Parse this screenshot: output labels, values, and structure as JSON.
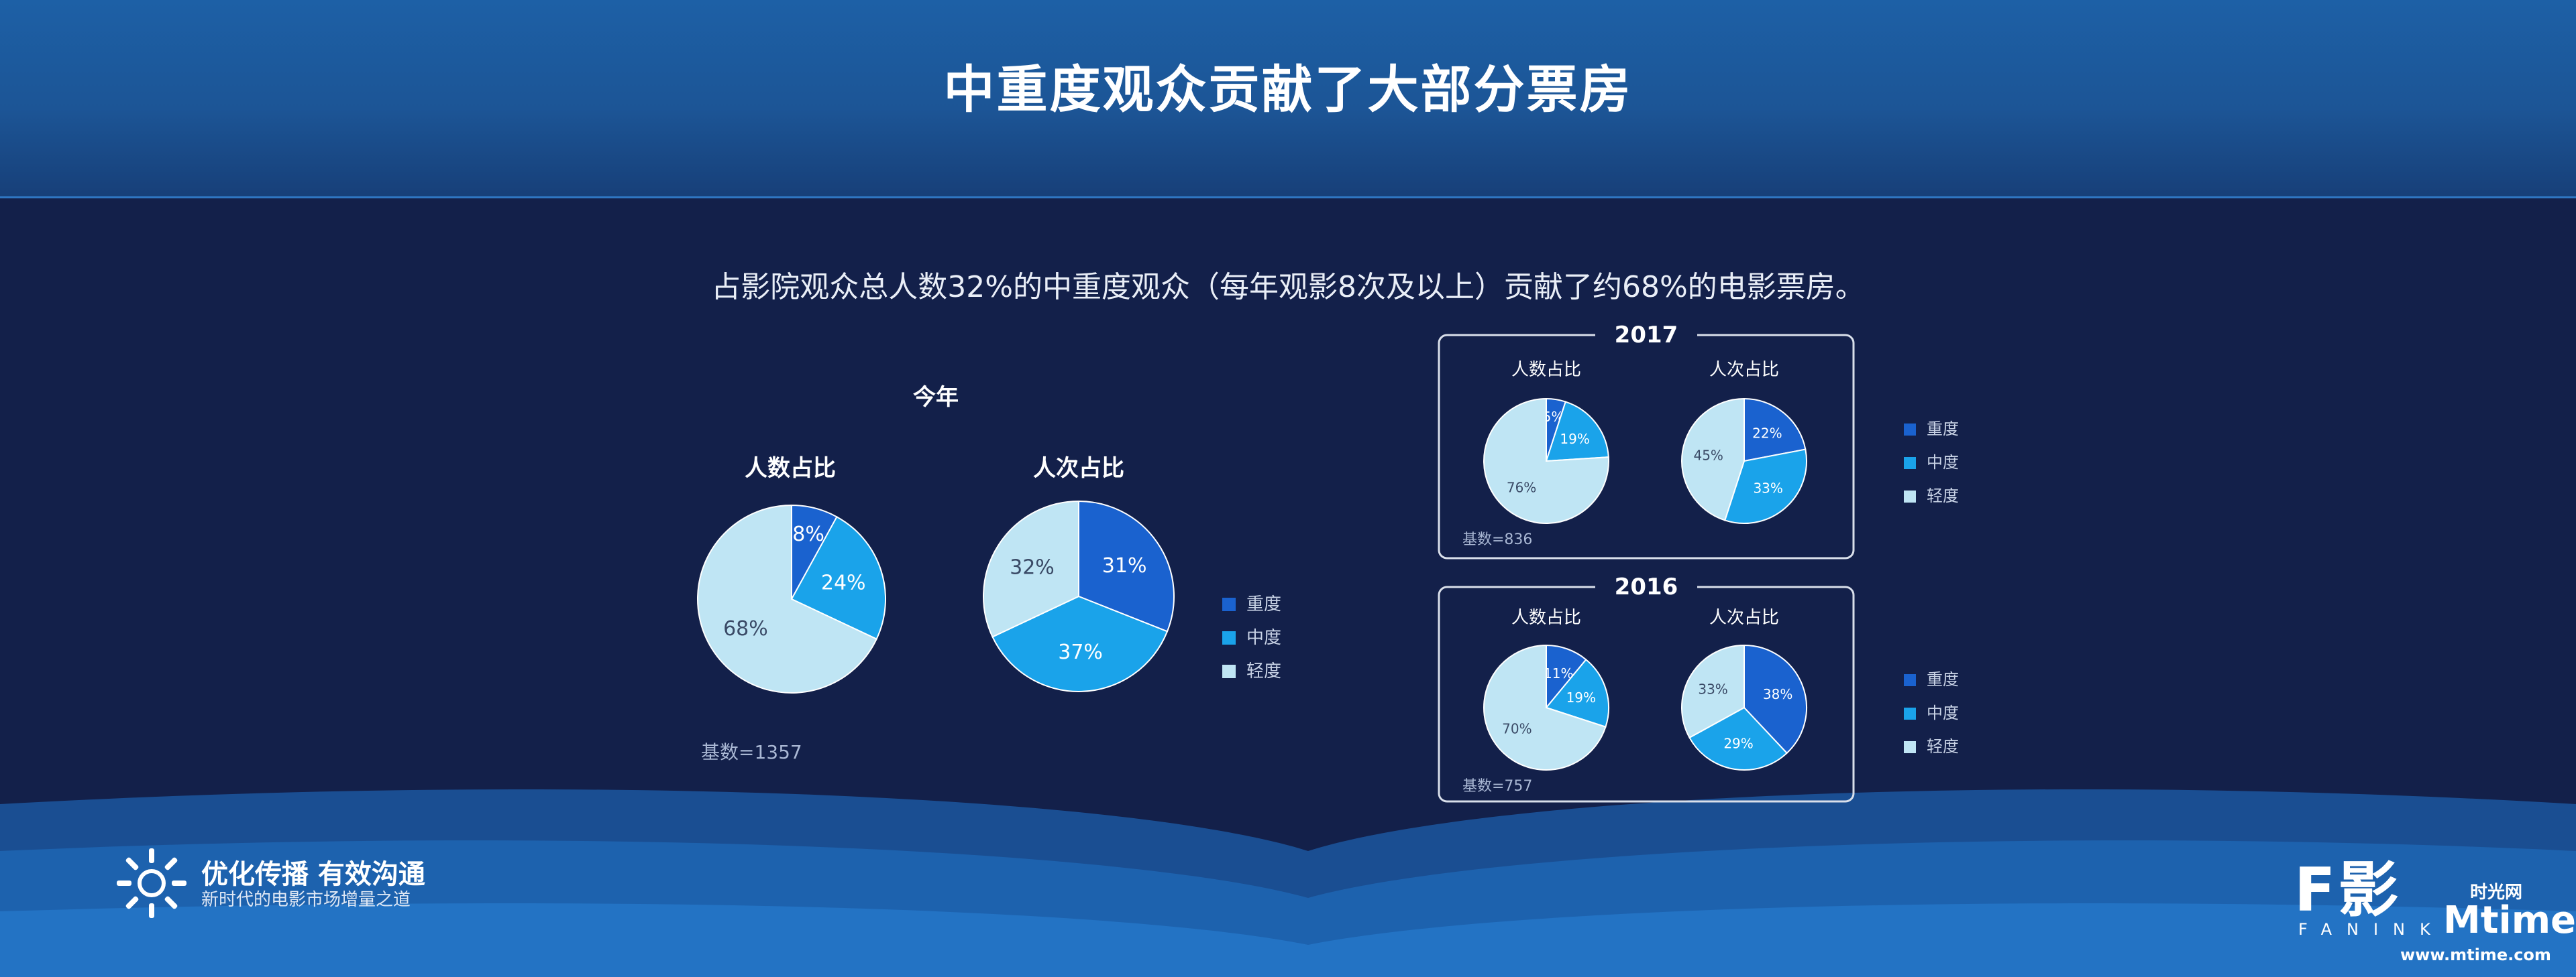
{
  "title": "中重度观众贡献了大部分票房",
  "subtitle": "占影院观众总人数32%的中重度观众（每年观影8次及以上）贡献了约68%的电影票房。",
  "legend_labels": [
    "重度",
    "中度",
    "轻度"
  ],
  "colors": {
    "heavy": "#1a62cf",
    "medium": "#1aa3ea",
    "light": "#bfe5f4",
    "background": "#13204a",
    "header": "#1c5596"
  },
  "footer": {
    "slogan": "优化传播 有效沟通",
    "slogan2": "新时代的电影市场增量之道",
    "fanink": "F影",
    "fanink_sub": "FANINK",
    "mtime_cn": "时光网",
    "mtime_logo": "Mtime",
    "mtime_url": "www.mtime.com"
  },
  "chart_data": [
    {
      "type": "pie",
      "group": "今年",
      "title": "人数占比",
      "categories": [
        "重度",
        "中度",
        "轻度"
      ],
      "values": [
        8,
        24,
        68
      ],
      "labels": [
        "8%",
        "24%",
        "68%"
      ],
      "note": "基数=1357"
    },
    {
      "type": "pie",
      "group": "今年",
      "title": "人次占比",
      "categories": [
        "重度",
        "中度",
        "轻度"
      ],
      "values": [
        31,
        37,
        32
      ],
      "labels": [
        "31%",
        "37%",
        "32%"
      ]
    },
    {
      "type": "pie",
      "group": "2017",
      "title": "人数占比",
      "categories": [
        "重度",
        "中度",
        "轻度"
      ],
      "values": [
        5,
        19,
        76
      ],
      "labels": [
        "5%",
        "19%",
        "76%"
      ],
      "note": "基数=836"
    },
    {
      "type": "pie",
      "group": "2017",
      "title": "人次占比",
      "categories": [
        "重度",
        "中度",
        "轻度"
      ],
      "values": [
        22,
        33,
        45
      ],
      "labels": [
        "22%",
        "33%",
        "45%"
      ]
    },
    {
      "type": "pie",
      "group": "2016",
      "title": "人数占比",
      "categories": [
        "重度",
        "中度",
        "轻度"
      ],
      "values": [
        11,
        19,
        70
      ],
      "labels": [
        "11%",
        "19%",
        "70%"
      ],
      "note": "基数=757"
    },
    {
      "type": "pie",
      "group": "2016",
      "title": "人次占比",
      "categories": [
        "重度",
        "中度",
        "轻度"
      ],
      "values": [
        38,
        29,
        33
      ],
      "labels": [
        "38%",
        "29%",
        "33%"
      ]
    }
  ]
}
